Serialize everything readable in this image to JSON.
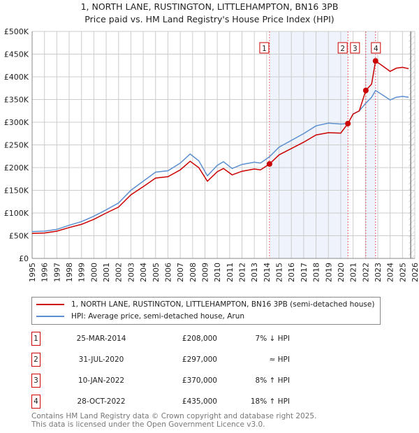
{
  "chart_data": {
    "type": "line",
    "title": "1, NORTH LANE, RUSTINGTON, LITTLEHAMPTON, BN16 3PB",
    "subtitle": "Price paid vs. HM Land Registry's House Price Index (HPI)",
    "xlim": [
      1995,
      2026
    ],
    "ylim": [
      0,
      500000
    ],
    "y_ticks": [
      {
        "v": 0,
        "label": "£0"
      },
      {
        "v": 50000,
        "label": "£50K"
      },
      {
        "v": 100000,
        "label": "£100K"
      },
      {
        "v": 150000,
        "label": "£150K"
      },
      {
        "v": 200000,
        "label": "£200K"
      },
      {
        "v": 250000,
        "label": "£250K"
      },
      {
        "v": 300000,
        "label": "£300K"
      },
      {
        "v": 350000,
        "label": "£350K"
      },
      {
        "v": 400000,
        "label": "£400K"
      },
      {
        "v": 450000,
        "label": "£450K"
      },
      {
        "v": 500000,
        "label": "£500K"
      }
    ],
    "x_ticks": [
      "1995",
      "1996",
      "1997",
      "1998",
      "1999",
      "2000",
      "2001",
      "2002",
      "2003",
      "2004",
      "2005",
      "2006",
      "2007",
      "2008",
      "2009",
      "2010",
      "2011",
      "2012",
      "2013",
      "2014",
      "2015",
      "2016",
      "2017",
      "2018",
      "2019",
      "2020",
      "2021",
      "2022",
      "2023",
      "2024",
      "2025",
      "2026"
    ],
    "grid": true,
    "colors": {
      "property": "#cc0000",
      "hpi": "#5b8fd0",
      "shade": "#eef3fc"
    },
    "series": [
      {
        "name": "1, NORTH LANE, RUSTINGTON, LITTLEHAMPTON, BN16 3PB (semi-detached house)",
        "x": [
          1995,
          1996,
          1997,
          1998,
          1999,
          2000,
          2001,
          2002,
          2003,
          2004,
          2005,
          2006,
          2007,
          2007.8,
          2008.5,
          2009.2,
          2010,
          2010.5,
          2011.2,
          2012,
          2013,
          2013.5,
          2014.23,
          2015,
          2016,
          2017,
          2018,
          2019,
          2020,
          2020.58,
          2021,
          2021.5,
          2022.03,
          2022.5,
          2022.82,
          2023.5,
          2024,
          2024.5,
          2025,
          2025.5
        ],
        "y": [
          55000,
          56000,
          60000,
          68000,
          75000,
          86000,
          100000,
          113000,
          140000,
          158000,
          177000,
          180000,
          195000,
          214000,
          200000,
          170000,
          191000,
          198000,
          184000,
          192000,
          197000,
          195000,
          208000,
          228000,
          242000,
          256000,
          272000,
          277000,
          276000,
          297000,
          318000,
          325000,
          370000,
          384000,
          435000,
          422000,
          412000,
          419000,
          421000,
          418000
        ]
      },
      {
        "name": "HPI: Average price, semi-detached house, Arun",
        "x": [
          1995,
          1996,
          1997,
          1998,
          1999,
          2000,
          2001,
          2002,
          2003,
          2004,
          2005,
          2006,
          2007,
          2007.8,
          2008.5,
          2009.2,
          2010,
          2010.5,
          2011.2,
          2012,
          2013,
          2013.5,
          2014.23,
          2015,
          2016,
          2017,
          2018,
          2019,
          2020,
          2020.58,
          2021,
          2021.5,
          2022.03,
          2022.5,
          2022.82,
          2023.5,
          2024,
          2024.5,
          2025,
          2025.5
        ],
        "y": [
          59000,
          60000,
          64000,
          73000,
          81000,
          93000,
          107000,
          122000,
          150000,
          170000,
          190000,
          193000,
          210000,
          230000,
          215000,
          182000,
          205000,
          213000,
          198000,
          207000,
          212000,
          210000,
          224000,
          245000,
          260000,
          275000,
          292000,
          298000,
          296000,
          297000,
          318000,
          325000,
          342000,
          355000,
          370000,
          358000,
          349000,
          355000,
          357000,
          355000
        ]
      }
    ],
    "sales": [
      {
        "id": "1",
        "x": 2014.23,
        "y": 208000
      },
      {
        "id": "2",
        "x": 2020.58,
        "y": 297000
      },
      {
        "id": "3",
        "x": 2022.03,
        "y": 370000
      },
      {
        "id": "4",
        "x": 2022.82,
        "y": 435000
      }
    ],
    "shaded_ranges": [
      [
        2014.23,
        2020.58
      ],
      [
        2022.03,
        2022.82
      ]
    ],
    "hatched_from": 2025.5
  },
  "legend": {
    "property": "1, NORTH LANE, RUSTINGTON, LITTLEHAMPTON, BN16 3PB (semi-detached house)",
    "hpi": "HPI: Average price, semi-detached house, Arun"
  },
  "transactions": [
    {
      "num": "1",
      "date": "25-MAR-2014",
      "price": "£208,000",
      "hpi": "7% ↓ HPI"
    },
    {
      "num": "2",
      "date": "31-JUL-2020",
      "price": "£297,000",
      "hpi": "≈ HPI"
    },
    {
      "num": "3",
      "date": "10-JAN-2022",
      "price": "£370,000",
      "hpi": "8% ↑ HPI"
    },
    {
      "num": "4",
      "date": "28-OCT-2022",
      "price": "£435,000",
      "hpi": "18% ↑ HPI"
    }
  ],
  "footer": {
    "line1": "Contains HM Land Registry data © Crown copyright and database right 2025.",
    "line2": "This data is licensed under the Open Government Licence v3.0."
  }
}
